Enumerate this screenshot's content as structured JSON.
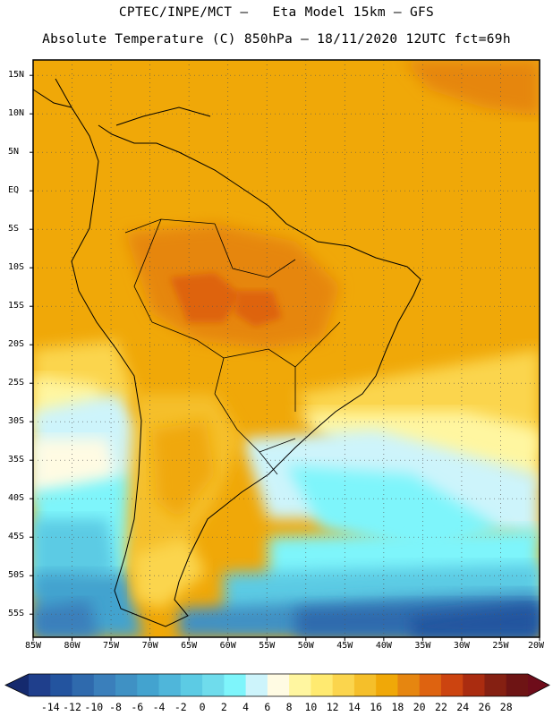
{
  "title_line1": "CPTEC/INPE/MCT –   Eta Model 15km – GFS",
  "title_line2": "Absolute Temperature (C) 850hPa – 18/11/2020 12UTC fct=69h",
  "map": {
    "lon_min": -85,
    "lon_max": -20,
    "lat_min": -58,
    "lat_max": 17,
    "grid_lines": "dotted"
  },
  "lat_labels": [
    "15N",
    "10N",
    "5N",
    "EQ",
    "5S",
    "10S",
    "15S",
    "20S",
    "25S",
    "30S",
    "35S",
    "40S",
    "45S",
    "50S",
    "55S"
  ],
  "lat_values": [
    15,
    10,
    5,
    0,
    -5,
    -10,
    -15,
    -20,
    -25,
    -30,
    -35,
    -40,
    -45,
    -50,
    -55
  ],
  "lon_labels": [
    "85W",
    "80W",
    "75W",
    "70W",
    "65W",
    "60W",
    "55W",
    "50W",
    "45W",
    "40W",
    "35W",
    "30W",
    "25W",
    "20W"
  ],
  "lon_values": [
    -85,
    -80,
    -75,
    -70,
    -65,
    -60,
    -55,
    -50,
    -45,
    -40,
    -35,
    -30,
    -25,
    -20
  ],
  "colorbar": {
    "labels": [
      "-14",
      "-12",
      "-10",
      "-8",
      "-6",
      "-4",
      "-2",
      "0",
      "2",
      "4",
      "6",
      "8",
      "10",
      "12",
      "14",
      "16",
      "18",
      "20",
      "22",
      "24",
      "26",
      "28"
    ],
    "colors": [
      "#1f3f8c",
      "#23549f",
      "#2f6aad",
      "#3a7fbb",
      "#3f91c4",
      "#43a3cf",
      "#4fb6da",
      "#5ccbe4",
      "#6fdcec",
      "#7ef5fb",
      "#cdf4fb",
      "#fffbe3",
      "#fff6a0",
      "#ffea70",
      "#fbd54d",
      "#f5bf2a",
      "#f0a808",
      "#e68610",
      "#de6310",
      "#cc4410",
      "#aa2c10",
      "#852012",
      "#6e1414"
    ],
    "low_arrow_color": "#152a6e",
    "high_arrow_color": "#6e0c1a"
  }
}
